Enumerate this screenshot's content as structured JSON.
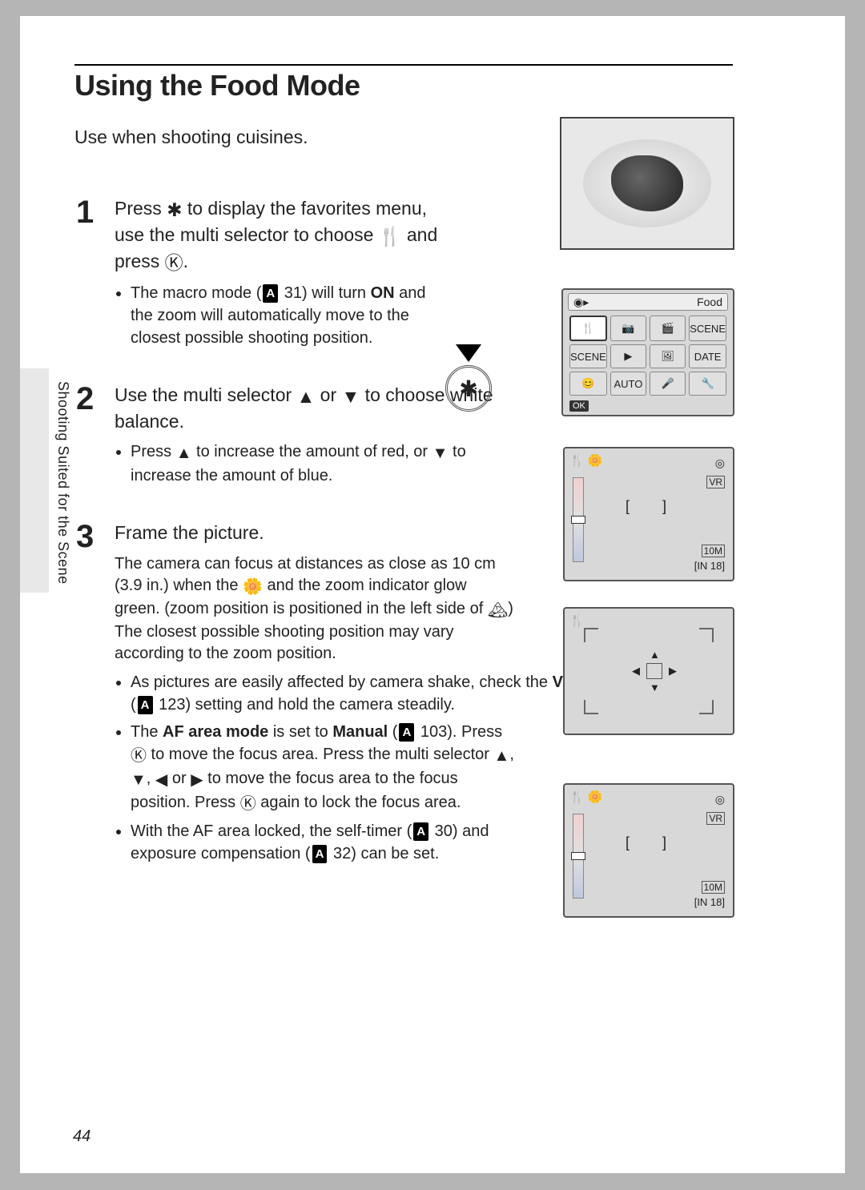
{
  "page_number": "44",
  "title": "Using the Food Mode",
  "intro": "Use when shooting cuisines.",
  "side_label": "Shooting Suited for the Scene",
  "steps": {
    "s1": {
      "num": "1",
      "title_a": "Press ",
      "title_b": " to display the favorites menu, use the multi selector to choose ",
      "title_c": " and press ",
      "title_d": ".",
      "bullets": {
        "b1_a": "The macro mode (",
        "b1_ref": "A",
        "b1_refpage": " 31) will turn ",
        "b1_on": "ON",
        "b1_b": " and the zoom will automatically move to the closest possible shooting position."
      }
    },
    "s2": {
      "num": "2",
      "title_a": "Use the multi selector ",
      "title_b": " or  ",
      "title_c": " to choose white balance.",
      "bullets": {
        "b1_a": "Press ",
        "b1_b": " to increase the amount of red, or ",
        "b1_c": " to increase the amount of blue."
      }
    },
    "s3": {
      "num": "3",
      "title": "Frame the picture.",
      "desc_a": "The camera can focus at distances as close as 10 cm (3.9 in.) when the ",
      "desc_b": " and the zoom indicator glow green. (zoom position is positioned in the left side of ",
      "desc_c": ") The closest possible shooting position may vary according to the zoom position.",
      "bullets": {
        "b1_a": "As pictures are easily affected by camera shake, check the ",
        "b1_vib": "Vibration reduction",
        "b1_b": " (",
        "b1_ref": "A",
        "b1_refpage": " 123) setting and hold the camera steadily.",
        "b2_a": "The ",
        "b2_af": "AF area mode",
        "b2_b": " is set to ",
        "b2_man": "Manual",
        "b2_c": " (",
        "b2_ref": "A",
        "b2_refpage": " 103). Press ",
        "b2_d": " to move the focus area. Press the multi selector ",
        "b2_e": ", ",
        "b2_f": ", ",
        "b2_g": " or ",
        "b2_h": " to move the focus area to the focus position. Press ",
        "b2_i": " again to lock the focus area.",
        "b3_a": "With the AF area locked, the self-timer (",
        "b3_ref1": "A",
        "b3_refpage1": " 30) and exposure compensation (",
        "b3_ref2": "A",
        "b3_refpage2": " 32) can be set."
      }
    }
  },
  "diagram_food_menu": {
    "topbar_left": "◉▸",
    "topbar_right": "Food",
    "cells": [
      "🍴",
      "📷",
      "🎬",
      "SCENE",
      "SCENE",
      "▶",
      "🖼",
      "DATE",
      "😊",
      "AUTO",
      "🎤",
      "🔧"
    ],
    "ok": "OK"
  },
  "diagram_cam": {
    "icons": "🍴 🌼",
    "top_right": "◎",
    "vr": "VR",
    "bracket": "[  ]",
    "mem": "10M",
    "count": "[IN 18]"
  },
  "glyphs": {
    "star": "✱",
    "cutlery": "🍴",
    "ok": "Ⓚ",
    "up": "▲",
    "down": "▼",
    "left": "◀",
    "right": "▶",
    "macro_flower": "🌼",
    "mountain": "🏔"
  }
}
